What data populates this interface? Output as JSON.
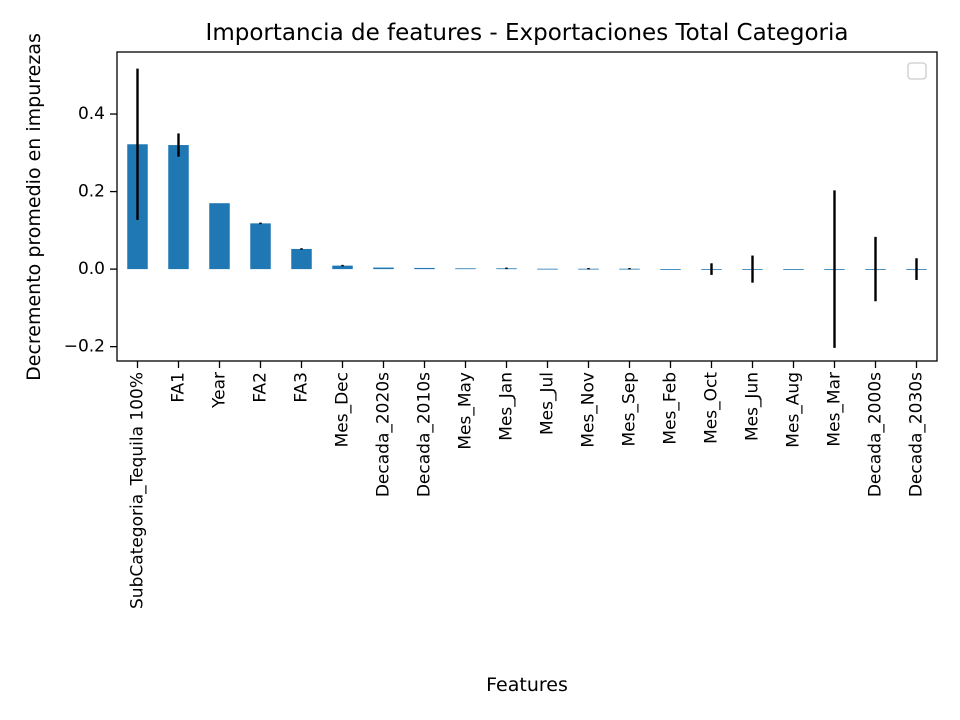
{
  "chart_data": {
    "type": "bar",
    "title": "Importancia de features - Exportaciones Total Categoria",
    "xlabel": "Features",
    "ylabel": "Decremento promedio en impurezas",
    "ylim": [
      -0.237,
      0.56
    ],
    "yticks": [
      -0.2,
      0.0,
      0.2,
      0.4
    ],
    "ytick_labels": [
      "−0.2",
      "0.0",
      "0.2",
      "0.4"
    ],
    "grid": false,
    "legend": {
      "placement": "top-right",
      "entries": []
    },
    "categories": [
      "SubCategoria_Tequila 100%",
      "FA1",
      "Year",
      "FA2",
      "FA3",
      "Mes_Dec",
      "Decada_2020s",
      "Decada_2010s",
      "Mes_May",
      "Mes_Jan",
      "Mes_Jul",
      "Mes_Nov",
      "Mes_Sep",
      "Mes_Feb",
      "Mes_Oct",
      "Mes_Jun",
      "Mes_Aug",
      "Mes_Mar",
      "Decada_2000s",
      "Decada_2030s"
    ],
    "values": [
      0.322,
      0.32,
      0.17,
      0.118,
      0.052,
      0.009,
      0.004,
      0.003,
      0.002,
      0.002,
      0.001,
      0.001,
      0.001,
      0.0,
      0.0,
      0.0,
      0.0,
      0.0,
      0.0,
      0.0
    ],
    "errors": [
      0.195,
      0.03,
      0.0,
      0.002,
      0.001,
      0.001,
      0.0,
      0.0,
      0.0,
      0.001,
      0.0,
      0.001,
      0.001,
      0.0,
      0.015,
      0.035,
      0.0,
      0.203,
      0.083,
      0.028
    ],
    "bar_color": "#1f77b4",
    "error_color": "#000000"
  }
}
